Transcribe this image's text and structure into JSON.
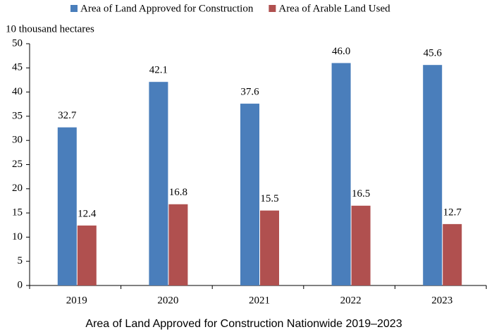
{
  "chart_data": {
    "type": "bar",
    "title": "Area of Land Approved for Construction Nationwide 2019–2023",
    "y_axis_label": "10 thousand hectares",
    "categories": [
      "2019",
      "2020",
      "2021",
      "2022",
      "2023"
    ],
    "series": [
      {
        "name": "Area of Land Approved for Construction",
        "color": "#4a7ebb",
        "values": [
          32.7,
          42.1,
          37.6,
          46.0,
          45.6
        ],
        "value_labels": [
          "32.7",
          "42.1",
          "37.6",
          "46.0",
          "45.6"
        ]
      },
      {
        "name": "Area of Arable Land Used",
        "color": "#b0504f",
        "values": [
          12.4,
          16.8,
          15.5,
          16.5,
          12.7
        ],
        "value_labels": [
          "12.4",
          "16.8",
          "15.5",
          "16.5",
          "12.7"
        ]
      }
    ],
    "ylim": [
      0,
      50
    ],
    "yticks": [
      0,
      5,
      10,
      15,
      20,
      25,
      30,
      35,
      40,
      45,
      50
    ],
    "legend": "top",
    "grid": false
  }
}
